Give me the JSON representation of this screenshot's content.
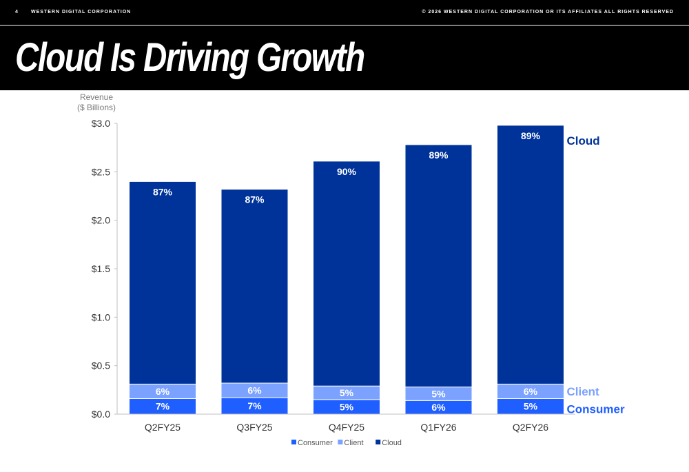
{
  "header": {
    "page_number": "4",
    "company": "WESTERN DIGITAL CORPORATION",
    "copyright": "© 2026 WESTERN DIGITAL CORPORATION OR ITS AFFILIATES  ALL RIGHTS RESERVED",
    "title": "Cloud Is Driving Growth"
  },
  "chart_data": {
    "type": "bar",
    "stacked": true,
    "ylabel_line1": "Revenue",
    "ylabel_line2": "($ Billions)",
    "ylim": [
      0,
      3.0
    ],
    "yticks": [
      "$0.0",
      "$0.5",
      "$1.0",
      "$1.5",
      "$2.0",
      "$2.5",
      "$3.0"
    ],
    "categories": [
      "Q2FY25",
      "Q3FY25",
      "Q4FY25",
      "Q1FY26",
      "Q2FY26"
    ],
    "totals": [
      2.4,
      2.32,
      2.61,
      2.78,
      2.98
    ],
    "series": [
      {
        "name": "Consumer",
        "color": "#1f5eff",
        "values": [
          0.16,
          0.17,
          0.15,
          0.14,
          0.16
        ],
        "labels": [
          "7%",
          "7%",
          "5%",
          "6%",
          "5%"
        ]
      },
      {
        "name": "Client",
        "color": "#7ba2ff",
        "values": [
          0.15,
          0.15,
          0.14,
          0.14,
          0.15
        ],
        "labels": [
          "6%",
          "6%",
          "5%",
          "5%",
          "6%"
        ]
      },
      {
        "name": "Cloud",
        "color": "#00339a",
        "values": [
          2.09,
          2.0,
          2.32,
          2.5,
          2.67
        ],
        "labels": [
          "87%",
          "87%",
          "90%",
          "89%",
          "89%"
        ]
      }
    ],
    "side_labels": [
      {
        "series": "Cloud",
        "text": "Cloud",
        "color": "#00339a"
      },
      {
        "series": "Client",
        "text": "Client",
        "color": "#7ba2ff"
      },
      {
        "series": "Consumer",
        "text": "Consumer",
        "color": "#1f5eff"
      }
    ],
    "legend": {
      "placement": "bottom",
      "items": [
        "Consumer",
        "Client",
        "Cloud"
      ]
    },
    "grid": false
  }
}
